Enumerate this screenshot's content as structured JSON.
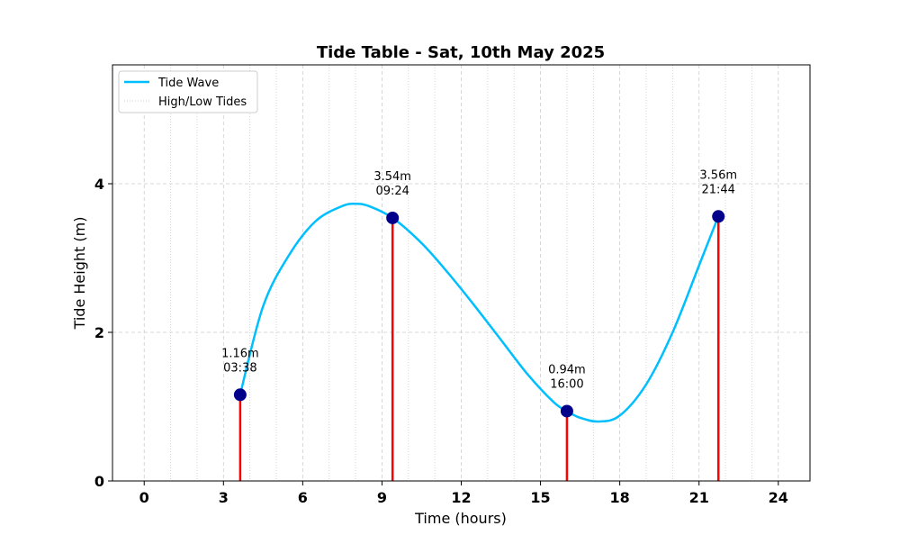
{
  "chart_data": {
    "type": "line",
    "title": "Tide Table - Sat, 10th May 2025",
    "xlabel": "Time (hours)",
    "ylabel": "Tide Height (m)",
    "xlim": [
      -1.2,
      25.2
    ],
    "ylim": [
      0,
      5.6
    ],
    "xticks": [
      0,
      3,
      6,
      9,
      12,
      15,
      18,
      21,
      24
    ],
    "yticks": [
      0,
      2,
      4
    ],
    "minor_xgrid": [
      1,
      2,
      4,
      5,
      7,
      8,
      10,
      11,
      13,
      14,
      16,
      17,
      19,
      20,
      22,
      23
    ],
    "grid": true,
    "legend": {
      "placement": "top-left",
      "entries": [
        {
          "label": "Tide Wave",
          "color": "#00BFFF",
          "style": "solid"
        },
        {
          "label": "High/Low Tides",
          "color": "#cccccc",
          "style": "dotted"
        }
      ]
    },
    "series": [
      {
        "name": "Tide Wave",
        "color": "#00BFFF",
        "x": [
          3.63,
          4.5,
          5.5,
          6.5,
          7.5,
          8.0,
          8.5,
          9.4,
          10.5,
          11.5,
          12.5,
          13.5,
          14.5,
          15.5,
          16.0,
          16.5,
          17.2,
          18.0,
          19.0,
          20.0,
          21.0,
          21.73
        ],
        "y": [
          1.16,
          2.35,
          3.05,
          3.5,
          3.7,
          3.73,
          3.7,
          3.54,
          3.2,
          2.8,
          2.36,
          1.9,
          1.44,
          1.06,
          0.94,
          0.85,
          0.8,
          0.88,
          1.3,
          2.0,
          2.9,
          3.56
        ]
      }
    ],
    "tides": [
      {
        "time": "03:38",
        "hours": 3.633,
        "height": 1.16,
        "label": "1.16m"
      },
      {
        "time": "09:24",
        "hours": 9.4,
        "height": 3.54,
        "label": "3.54m"
      },
      {
        "time": "16:00",
        "hours": 16.0,
        "height": 0.94,
        "label": "0.94m"
      },
      {
        "time": "21:44",
        "hours": 21.733,
        "height": 3.56,
        "label": "3.56m"
      }
    ],
    "colors": {
      "marker": "#00008B",
      "stem": "#FF0000",
      "grid": "#cccccc",
      "curve": "#00BFFF"
    }
  }
}
